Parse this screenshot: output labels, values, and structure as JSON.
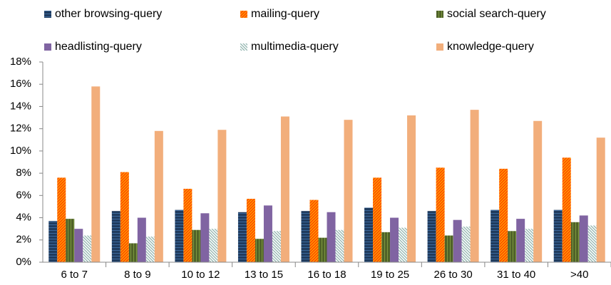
{
  "chart_data": {
    "type": "bar",
    "categories": [
      "6 to 7",
      "8 to 9",
      "10 to 12",
      "13 to 15",
      "16 to 18",
      "19 to 25",
      "26 to 30",
      "31 to 40",
      ">40"
    ],
    "series": [
      {
        "name": "other browsing-query",
        "color": "#1f3b5e",
        "pattern": "hstripe",
        "values": [
          3.7,
          4.6,
          4.7,
          4.5,
          4.6,
          4.9,
          4.6,
          4.7,
          4.7
        ]
      },
      {
        "name": "mailing-query",
        "color": "#ff4000",
        "pattern": "diag",
        "values": [
          7.6,
          8.1,
          6.6,
          5.7,
          5.6,
          7.6,
          8.5,
          8.4,
          9.4
        ]
      },
      {
        "name": "social search-query",
        "color": "#4f6228",
        "pattern": "vstripe",
        "values": [
          3.9,
          1.7,
          2.9,
          2.1,
          2.2,
          2.7,
          2.4,
          2.8,
          3.6
        ]
      },
      {
        "name": "headlisting-query",
        "color": "#8064a2",
        "pattern": "none",
        "values": [
          3.0,
          4.0,
          4.4,
          5.1,
          4.5,
          4.0,
          3.8,
          3.9,
          4.2
        ]
      },
      {
        "name": "multimedia-query",
        "color": "#8fb3ad",
        "pattern": "diag2",
        "values": [
          2.4,
          2.3,
          3.0,
          2.8,
          2.9,
          3.1,
          3.2,
          3.0,
          3.3
        ]
      },
      {
        "name": "knowledge-query",
        "color": "#f2ae7b",
        "pattern": "none",
        "values": [
          15.8,
          11.8,
          11.9,
          13.1,
          12.8,
          13.2,
          13.7,
          12.7,
          11.2
        ]
      }
    ],
    "ylim": [
      0,
      18
    ],
    "yticks": [
      {
        "value": 0,
        "label": "0%"
      },
      {
        "value": 2,
        "label": "2%"
      },
      {
        "value": 4,
        "label": "4%"
      },
      {
        "value": 6,
        "label": "6%"
      },
      {
        "value": 8,
        "label": "8%"
      },
      {
        "value": 10,
        "label": "10%"
      },
      {
        "value": 12,
        "label": "12%"
      },
      {
        "value": 14,
        "label": "14%"
      },
      {
        "value": 16,
        "label": "16%"
      },
      {
        "value": 18,
        "label": "18%"
      }
    ],
    "legend": "top",
    "grid": false
  }
}
